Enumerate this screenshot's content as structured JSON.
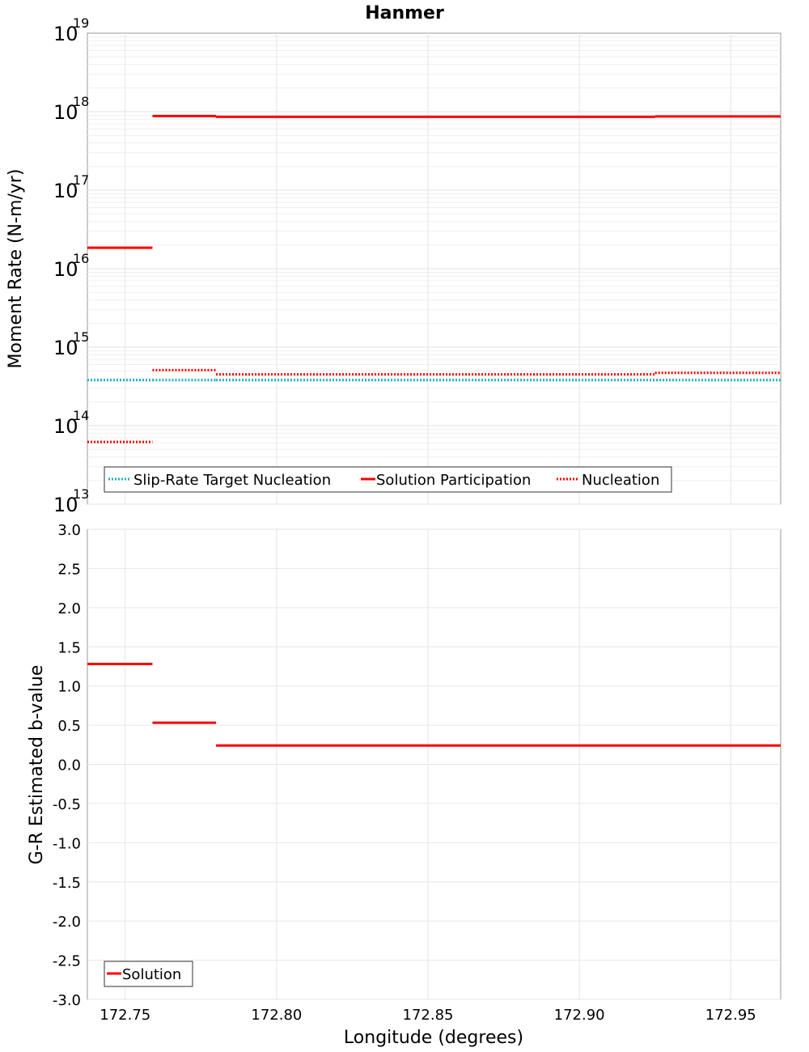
{
  "chart_data": [
    {
      "type": "line",
      "subtype": "step-segments",
      "title": "Hanmer",
      "xlabel": "",
      "ylabel": "Moment Rate (N-m/yr)",
      "yscale": "log",
      "ylim": [
        10000000000000.0,
        1e+19
      ],
      "xlim": [
        172.7375,
        172.9665
      ],
      "ytick_base": "10",
      "yticks": [
        {
          "exp": "19",
          "value": 1e+19
        },
        {
          "exp": "18",
          "value": 1e+18
        },
        {
          "exp": "17",
          "value": 1e+17
        },
        {
          "exp": "16",
          "value": 1e+16
        },
        {
          "exp": "15",
          "value": 1000000000000000.0
        },
        {
          "exp": "14",
          "value": 100000000000000.0
        },
        {
          "exp": "13",
          "value": 10000000000000.0
        }
      ],
      "grid": true,
      "legend_position": "bottom-left",
      "series": [
        {
          "name": "Slip-Rate Target Nucleation",
          "color": "#20b0c0",
          "style": "dotted",
          "segments": [
            {
              "x0": 172.7375,
              "x1": 172.759,
              "y": 380000000000000.0
            },
            {
              "x0": 172.759,
              "x1": 172.78,
              "y": 380000000000000.0
            },
            {
              "x0": 172.78,
              "x1": 172.9665,
              "y": 380000000000000.0
            }
          ]
        },
        {
          "name": "Solution Participation",
          "color": "#ff0000",
          "style": "solid",
          "segments": [
            {
              "x0": 172.7375,
              "x1": 172.759,
              "y": 1.85e+16
            },
            {
              "x0": 172.759,
              "x1": 172.78,
              "y": 8.8e+17
            },
            {
              "x0": 172.78,
              "x1": 172.925,
              "y": 8.6e+17
            },
            {
              "x0": 172.925,
              "x1": 172.9665,
              "y": 8.7e+17
            }
          ]
        },
        {
          "name": "Nucleation",
          "color": "#ff0000",
          "style": "dotted",
          "segments": [
            {
              "x0": 172.7375,
              "x1": 172.759,
              "y": 62000000000000.0
            },
            {
              "x0": 172.759,
              "x1": 172.78,
              "y": 510000000000000.0
            },
            {
              "x0": 172.78,
              "x1": 172.925,
              "y": 450000000000000.0
            },
            {
              "x0": 172.925,
              "x1": 172.9665,
              "y": 470000000000000.0
            }
          ]
        }
      ]
    },
    {
      "type": "line",
      "subtype": "step-segments",
      "title": "",
      "xlabel": "Longitude (degrees)",
      "ylabel": "G-R Estimated b-value",
      "ylim": [
        -3.0,
        3.0
      ],
      "xlim": [
        172.7375,
        172.9665
      ],
      "yticks": [
        "3.0",
        "2.5",
        "2.0",
        "1.5",
        "1.0",
        "0.5",
        "0.0",
        "-0.5",
        "-1.0",
        "-1.5",
        "-2.0",
        "-2.5",
        "-3.0"
      ],
      "xticks": [
        "172.75",
        "172.80",
        "172.85",
        "172.90",
        "172.95"
      ],
      "grid": true,
      "legend_position": "bottom-left",
      "series": [
        {
          "name": "Solution",
          "color": "#ff0000",
          "style": "solid",
          "segments": [
            {
              "x0": 172.7375,
              "x1": 172.759,
              "y": 1.28
            },
            {
              "x0": 172.759,
              "x1": 172.78,
              "y": 0.53
            },
            {
              "x0": 172.78,
              "x1": 172.9665,
              "y": 0.24
            }
          ]
        }
      ]
    }
  ]
}
